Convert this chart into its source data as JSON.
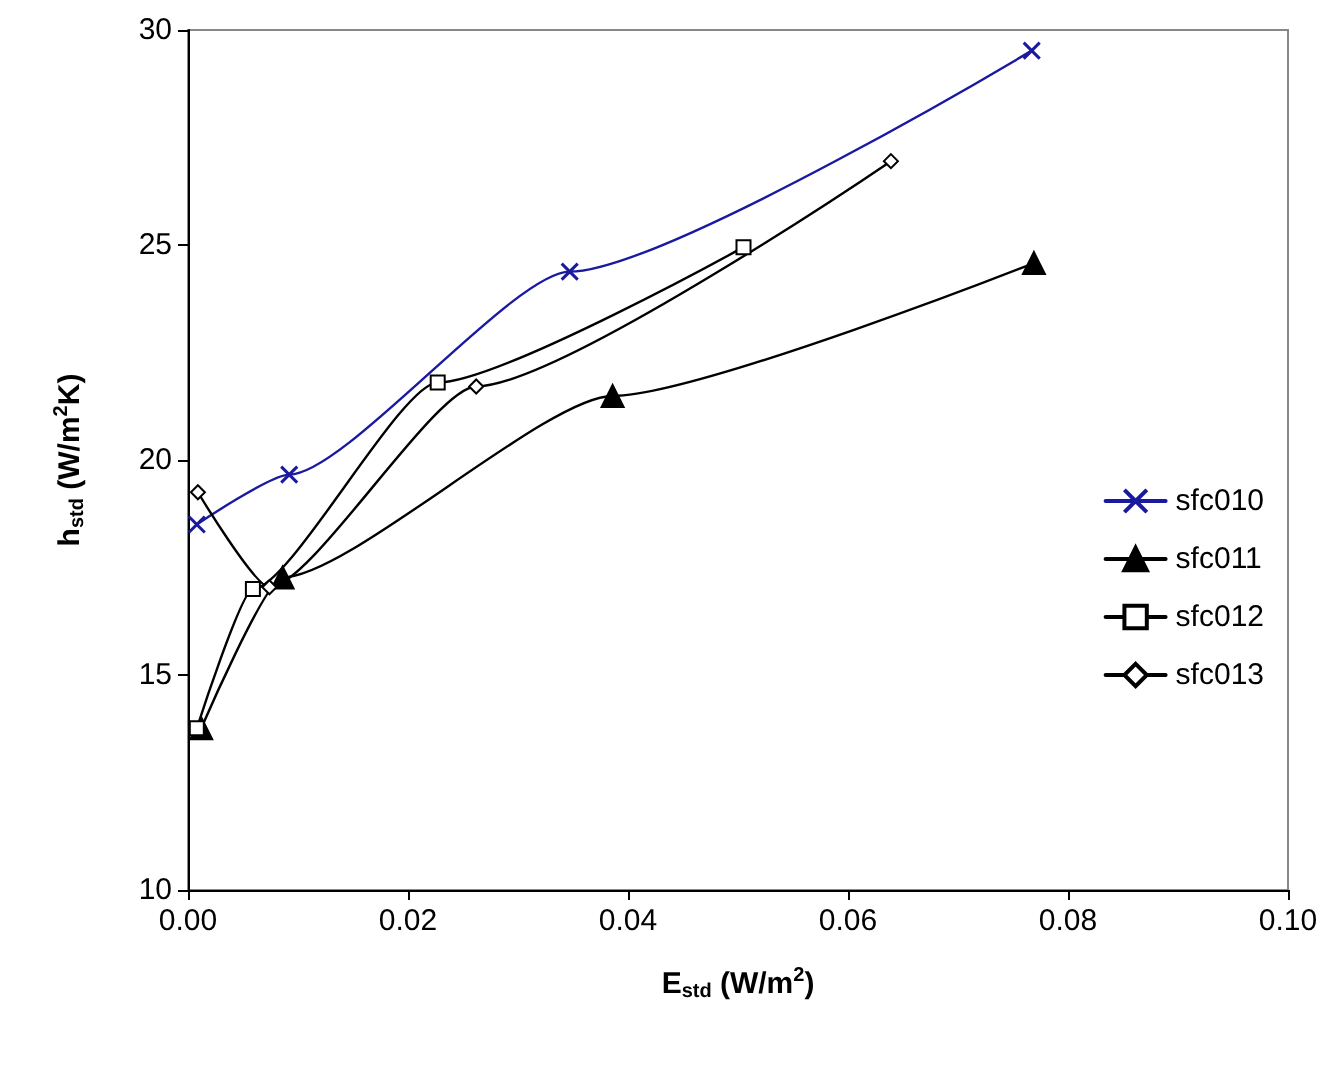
{
  "chart_data": {
    "type": "line",
    "xlabel": "E$_{std}$ (W/m$^{2}$)",
    "ylabel": "h$_{std}$ (W/m$^{2}$K)",
    "xlim": [
      0,
      0.1
    ],
    "xticks": [
      {
        "value": 0,
        "label": "0.00"
      },
      {
        "value": 0.02,
        "label": "0.02"
      },
      {
        "value": 0.04,
        "label": "0.04"
      },
      {
        "value": 0.06,
        "label": "0.06"
      },
      {
        "value": 0.08,
        "label": "0.08"
      },
      {
        "value": 0.1,
        "label": "0.10"
      }
    ],
    "ylim": [
      10,
      30
    ],
    "yticks": [
      10,
      15,
      20,
      25,
      30
    ],
    "grid": false,
    "legend": "right",
    "series": [
      {
        "name": "sfc010",
        "color": "#1a1aa0",
        "marker": "cross",
        "x": [
          0.0008,
          0.0092,
          0.0347,
          0.0767
        ],
        "values": [
          18.5,
          19.66,
          24.38,
          29.52
        ]
      },
      {
        "name": "sfc011",
        "color": "#000000",
        "marker": "triangle",
        "x": [
          0.0012,
          0.0086,
          0.0386,
          0.0769
        ],
        "values": [
          13.76,
          17.27,
          21.49,
          24.58
        ]
      },
      {
        "name": "sfc012",
        "color": "#000000",
        "marker": "square",
        "x": [
          0.0008,
          0.0059,
          0.0227,
          0.0505
        ],
        "values": [
          13.76,
          17.0,
          21.8,
          24.95
        ]
      },
      {
        "name": "sfc013",
        "color": "#000000",
        "marker": "diamond",
        "x": [
          0.0009,
          0.0074,
          0.0262,
          0.0639
        ],
        "values": [
          19.25,
          17.04,
          21.71,
          26.95
        ]
      }
    ]
  }
}
